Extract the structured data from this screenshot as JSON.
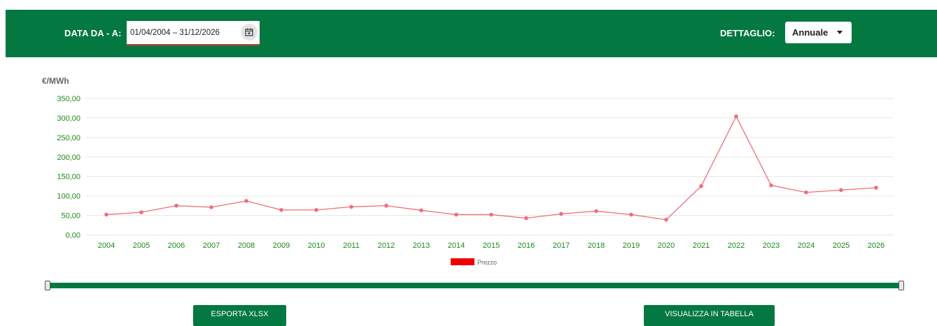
{
  "filters": {
    "date_label": "DATA DA - A:",
    "date_value": "01/04/2004 – 31/12/2026",
    "detail_label": "DETTAGLIO:",
    "detail_value": "Annuale"
  },
  "actions": {
    "export_label": "ESPORTA XLSX",
    "table_label": "VISUALIZZA IN TABELLA"
  },
  "colors": {
    "brand_green": "#037841",
    "line": "#ee6e7a",
    "legend": "#ee0000"
  },
  "chart_data": {
    "type": "line",
    "ylabel": "€/MWh",
    "xlabel": "",
    "ylim": [
      0,
      350
    ],
    "yticks": [
      "0,00",
      "50,00",
      "100,00",
      "150,00",
      "200,00",
      "250,00",
      "300,00",
      "350,00"
    ],
    "grid": true,
    "legend_position": "bottom",
    "categories": [
      "2004",
      "2005",
      "2006",
      "2007",
      "2008",
      "2009",
      "2010",
      "2011",
      "2012",
      "2013",
      "2014",
      "2015",
      "2016",
      "2017",
      "2018",
      "2019",
      "2020",
      "2021",
      "2022",
      "2023",
      "2024",
      "2025",
      "2026"
    ],
    "series": [
      {
        "name": "Prezzo",
        "values": [
          52,
          58,
          75,
          71,
          87,
          64,
          64,
          72,
          75,
          63,
          52,
          52,
          43,
          54,
          61,
          52,
          39,
          125,
          304,
          127,
          109,
          115,
          121
        ]
      }
    ]
  }
}
